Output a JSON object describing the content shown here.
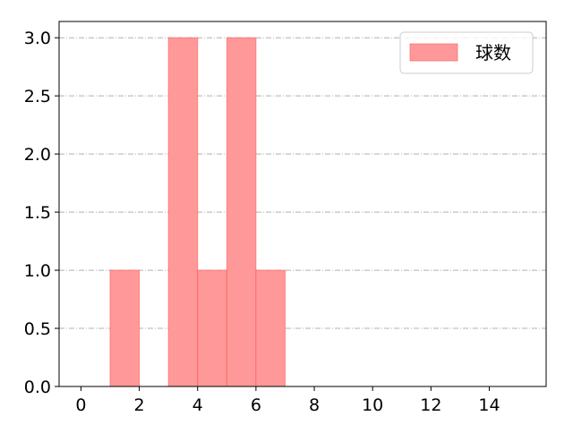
{
  "chart_data": {
    "type": "bar",
    "title": "",
    "xlabel": "",
    "ylabel": "",
    "bins": [
      {
        "x0": 1,
        "x1": 2,
        "value": 1
      },
      {
        "x0": 3,
        "x1": 4,
        "value": 3
      },
      {
        "x0": 4,
        "x1": 5,
        "value": 1
      },
      {
        "x0": 5,
        "x1": 6,
        "value": 3
      },
      {
        "x0": 6,
        "x1": 7,
        "value": 1
      }
    ],
    "xlim": [
      -0.75,
      15.95
    ],
    "ylim": [
      0,
      3.14
    ],
    "xticks": [
      "0",
      "2",
      "4",
      "6",
      "8",
      "10",
      "12",
      "14"
    ],
    "yticks": [
      "0.0",
      "0.5",
      "1.0",
      "1.5",
      "2.0",
      "2.5",
      "3.0"
    ],
    "grid": "y dash-dot",
    "legend": {
      "placement": "top-right",
      "entries": [
        "球数"
      ]
    },
    "colors": {
      "bar_fill": "#ff9999",
      "bar_edge": "#ff5555",
      "grid": "#b0b0b0"
    }
  }
}
